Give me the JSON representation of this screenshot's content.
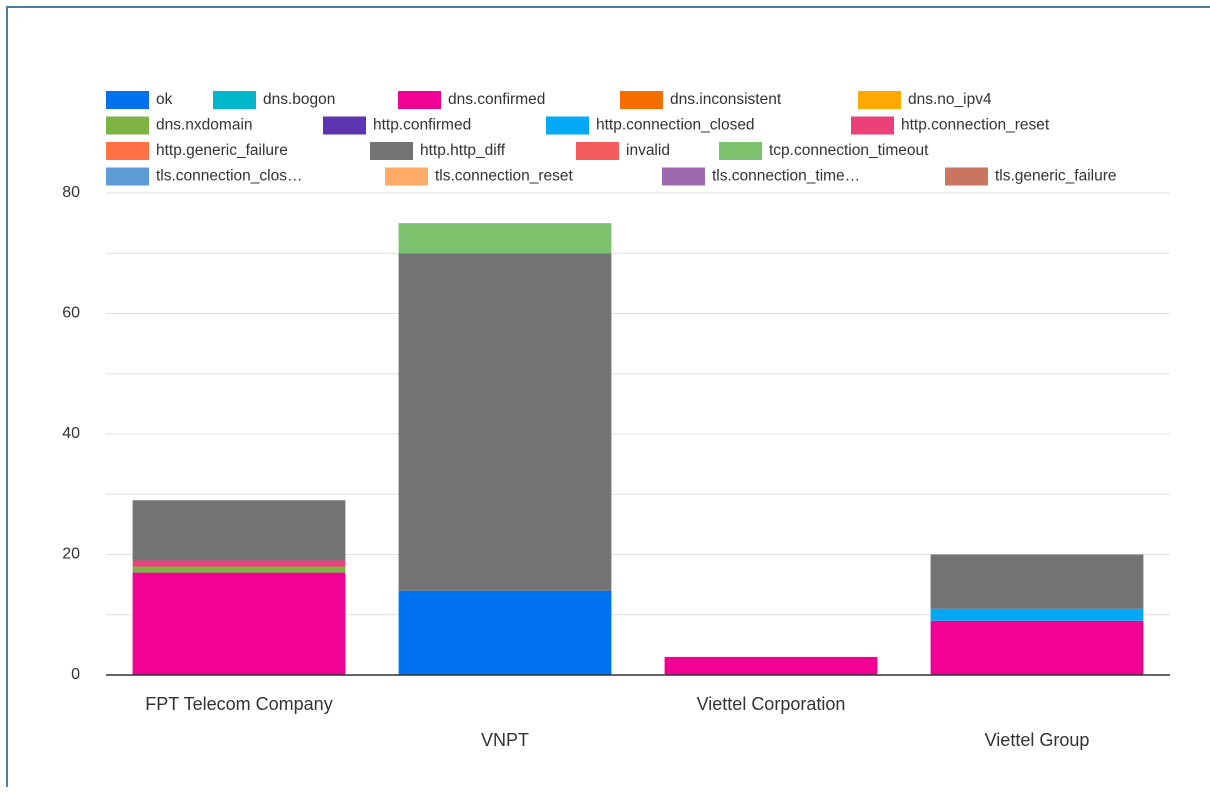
{
  "chart_data": {
    "type": "stacked_bar",
    "categories": [
      "FPT Telecom Company",
      "VNPT",
      "Viettel Corporation",
      "Viettel Group"
    ],
    "series": [
      {
        "name": "ok",
        "color": "#0072f0",
        "values": [
          0,
          14,
          0,
          0
        ]
      },
      {
        "name": "dns.bogon",
        "color": "#00b6cb",
        "values": [
          0,
          0,
          0,
          0
        ]
      },
      {
        "name": "dns.confirmed",
        "color": "#f10096",
        "values": [
          17,
          0,
          3,
          9
        ]
      },
      {
        "name": "dns.inconsistent",
        "color": "#f66d00",
        "values": [
          0,
          0,
          0,
          0
        ]
      },
      {
        "name": "dns.no_ipv4",
        "color": "#ffa800",
        "values": [
          0,
          0,
          0,
          0
        ]
      },
      {
        "name": "dns.nxdomain",
        "color": "#7cb342",
        "values": [
          1,
          0,
          0,
          0
        ]
      },
      {
        "name": "http.confirmed",
        "color": "#5e35b1",
        "values": [
          0,
          0,
          0,
          0
        ]
      },
      {
        "name": "http.connection_closed",
        "color": "#03a9f4",
        "values": [
          0,
          0,
          0,
          2
        ]
      },
      {
        "name": "http.connection_reset",
        "color": "#ec407a",
        "values": [
          1,
          0,
          0,
          0
        ]
      },
      {
        "name": "http.generic_failure",
        "color": "#ff7043",
        "values": [
          0,
          0,
          0,
          0
        ]
      },
      {
        "name": "http.http_diff",
        "color": "#737373",
        "values": [
          10,
          56,
          0,
          9
        ]
      },
      {
        "name": "invalid",
        "color": "#f15b5b",
        "values": [
          0,
          0,
          0,
          0
        ]
      },
      {
        "name": "tcp.connection_timeout",
        "color": "#7dc36f",
        "values": [
          0,
          5,
          0,
          0
        ]
      },
      {
        "name": "tls.connection_clos…",
        "color": "#5c9bd5",
        "values": [
          0,
          0,
          0,
          0
        ]
      },
      {
        "name": "tls.connection_reset",
        "color": "#ffaa66",
        "values": [
          0,
          0,
          0,
          0
        ]
      },
      {
        "name": "tls.connection_time…",
        "color": "#9e69af",
        "values": [
          0,
          0,
          0,
          0
        ]
      },
      {
        "name": "tls.generic_failure",
        "color": "#c87562",
        "values": [
          0,
          0,
          0,
          0
        ]
      }
    ],
    "ylim": [
      0,
      80
    ],
    "yticks": [
      0,
      20,
      40,
      60,
      80
    ],
    "minor_yticks": [
      10,
      30,
      50,
      70
    ],
    "grid": true
  }
}
